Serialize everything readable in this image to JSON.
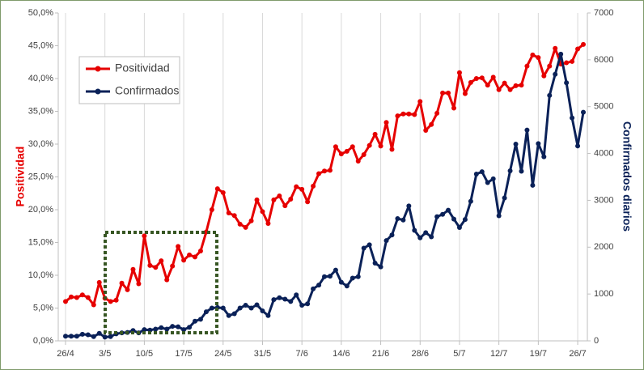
{
  "chart_data": {
    "type": "line",
    "categories": [
      "26/4",
      null,
      null,
      null,
      null,
      null,
      null,
      "3/5",
      null,
      null,
      null,
      null,
      null,
      null,
      "10/5",
      null,
      null,
      null,
      null,
      null,
      null,
      "17/5",
      null,
      null,
      null,
      null,
      null,
      null,
      "24/5",
      null,
      null,
      null,
      null,
      null,
      null,
      "31/5",
      null,
      null,
      null,
      null,
      null,
      null,
      "7/6",
      null,
      null,
      null,
      null,
      null,
      null,
      "14/6",
      null,
      null,
      null,
      null,
      null,
      null,
      "21/6",
      null,
      null,
      null,
      null,
      null,
      null,
      "28/6",
      null,
      null,
      null,
      null,
      null,
      null,
      "5/7",
      null,
      null,
      null,
      null,
      null,
      null,
      "12/7",
      null,
      null,
      null,
      null,
      null,
      null,
      "19/7",
      null,
      null,
      null,
      null,
      null,
      null,
      "26/7",
      null
    ],
    "series": [
      {
        "name": "Positividad",
        "color": "#e60000",
        "axis": "y",
        "values": [
          6.0,
          6.7,
          6.6,
          7.0,
          6.6,
          5.5,
          8.9,
          6.5,
          6.0,
          6.2,
          8.8,
          7.8,
          10.9,
          8.7,
          16.0,
          11.5,
          11.2,
          12.2,
          9.3,
          11.4,
          14.4,
          12.3,
          13.1,
          12.8,
          13.7,
          16.6,
          20.0,
          23.2,
          22.6,
          19.5,
          19.1,
          17.8,
          17.3,
          18.3,
          21.5,
          19.7,
          17.9,
          21.5,
          22.1,
          20.6,
          21.6,
          23.5,
          23.1,
          21.2,
          23.6,
          25.5,
          25.9,
          26.0,
          29.6,
          28.5,
          28.9,
          29.6,
          27.4,
          28.4,
          29.8,
          31.5,
          29.7,
          33.3,
          29.2,
          34.3,
          34.6,
          34.6,
          34.5,
          36.5,
          32.1,
          33.0,
          34.7,
          37.8,
          37.8,
          35.5,
          40.9,
          37.7,
          39.4,
          40.0,
          40.1,
          39.0,
          40.2,
          38.3,
          39.3,
          38.3,
          38.9,
          39.0,
          41.9,
          43.6,
          43.2,
          40.4,
          41.9,
          44.6,
          42.2,
          42.4,
          42.6,
          44.5,
          45.2
        ]
      },
      {
        "name": "Confirmados",
        "color": "#0a2158",
        "axis": "y2",
        "values": [
          100,
          100,
          100,
          140,
          130,
          90,
          160,
          80,
          90,
          150,
          170,
          180,
          220,
          170,
          240,
          230,
          250,
          280,
          250,
          310,
          300,
          240,
          290,
          420,
          460,
          620,
          700,
          710,
          700,
          540,
          580,
          700,
          760,
          700,
          770,
          640,
          540,
          880,
          920,
          890,
          840,
          980,
          760,
          790,
          1110,
          1190,
          1370,
          1380,
          1510,
          1250,
          1170,
          1340,
          1370,
          1980,
          2050,
          1660,
          1580,
          2140,
          2260,
          2610,
          2580,
          2880,
          2360,
          2200,
          2310,
          2220,
          2650,
          2700,
          2790,
          2600,
          2420,
          2590,
          2980,
          3560,
          3610,
          3380,
          3460,
          2670,
          3050,
          3630,
          4200,
          3620,
          4500,
          3320,
          4210,
          3930,
          5240,
          5690,
          6120,
          5510,
          4760,
          4160,
          4880
        ]
      }
    ],
    "y_label": "Positividad",
    "y2_label": "Confirmados diarios",
    "ylim": [
      0,
      50
    ],
    "yticks": [
      {
        "value": 0,
        "label": "0,0%"
      },
      {
        "value": 5,
        "label": "5,0%"
      },
      {
        "value": 10,
        "label": "10,0%"
      },
      {
        "value": 15,
        "label": "15,0%"
      },
      {
        "value": 20,
        "label": "20,0%"
      },
      {
        "value": 25,
        "label": "25,0%"
      },
      {
        "value": 30,
        "label": "30,0%"
      },
      {
        "value": 35,
        "label": "35,0%"
      },
      {
        "value": 40,
        "label": "40,0%"
      },
      {
        "value": 45,
        "label": "45,0%"
      },
      {
        "value": 50,
        "label": "50,0%"
      }
    ],
    "y2lim": [
      0,
      7000
    ],
    "y2ticks": [
      0,
      1000,
      2000,
      3000,
      4000,
      5000,
      6000,
      7000
    ],
    "grid": "x",
    "legend": "upper left"
  }
}
